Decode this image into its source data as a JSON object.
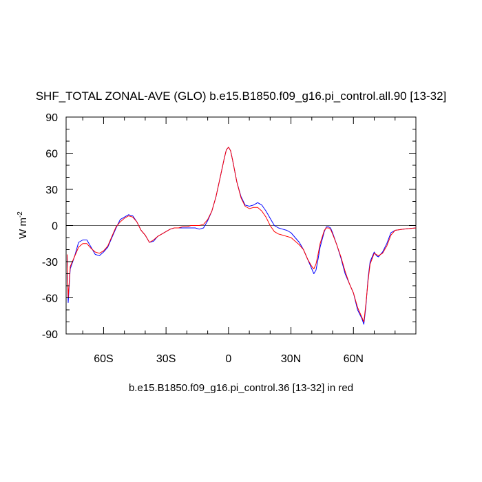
{
  "chart_data": {
    "type": "line",
    "title": "SHF_TOTAL ZONAL-AVE (GLO) b.e15.B1850.f09_g16.pi_control.all.90 [13-32]",
    "ylabel": "W m",
    "ylabel_superscript": "-2",
    "footer": "b.e15.B1850.f09_g16.pi_control.36 [13-32] in red",
    "xlim": [
      -78,
      90
    ],
    "ylim": [
      -90,
      90
    ],
    "x_ticks": [
      {
        "value": -60,
        "label": "60S"
      },
      {
        "value": -30,
        "label": "30S"
      },
      {
        "value": 0,
        "label": "0"
      },
      {
        "value": 30,
        "label": "30N"
      },
      {
        "value": 60,
        "label": "60N"
      }
    ],
    "y_ticks": [
      {
        "value": 90,
        "label": "90"
      },
      {
        "value": 60,
        "label": "60"
      },
      {
        "value": 30,
        "label": "30"
      },
      {
        "value": 0,
        "label": "0"
      },
      {
        "value": -30,
        "label": "-30"
      },
      {
        "value": -60,
        "label": "-60"
      },
      {
        "value": -90,
        "label": "-90"
      }
    ],
    "reference_line": 0,
    "series": [
      {
        "color": "#0000ff",
        "points": [
          [
            -77.5,
            -24
          ],
          [
            -77,
            -64
          ],
          [
            -76,
            -36
          ],
          [
            -74,
            -26
          ],
          [
            -72,
            -14
          ],
          [
            -70,
            -12
          ],
          [
            -68,
            -12
          ],
          [
            -66,
            -18
          ],
          [
            -64,
            -24
          ],
          [
            -62,
            -25
          ],
          [
            -60,
            -22
          ],
          [
            -58,
            -18
          ],
          [
            -56,
            -10
          ],
          [
            -54,
            -2
          ],
          [
            -52,
            5
          ],
          [
            -50,
            7
          ],
          [
            -48,
            9
          ],
          [
            -46,
            8
          ],
          [
            -44,
            3
          ],
          [
            -42,
            -4
          ],
          [
            -40,
            -8
          ],
          [
            -38,
            -14
          ],
          [
            -36,
            -13
          ],
          [
            -34,
            -9
          ],
          [
            -32,
            -7
          ],
          [
            -30,
            -5
          ],
          [
            -28,
            -3
          ],
          [
            -26,
            -2
          ],
          [
            -24,
            -2
          ],
          [
            -22,
            -2
          ],
          [
            -20,
            -2
          ],
          [
            -18,
            -2
          ],
          [
            -16,
            -2
          ],
          [
            -14,
            -3
          ],
          [
            -12,
            -2
          ],
          [
            -10,
            4
          ],
          [
            -8,
            12
          ],
          [
            -6,
            24
          ],
          [
            -4,
            40
          ],
          [
            -2,
            56
          ],
          [
            -1,
            63
          ],
          [
            0,
            65
          ],
          [
            1,
            62
          ],
          [
            2,
            54
          ],
          [
            4,
            36
          ],
          [
            6,
            24
          ],
          [
            8,
            17
          ],
          [
            10,
            16
          ],
          [
            12,
            17
          ],
          [
            14,
            19
          ],
          [
            16,
            17
          ],
          [
            18,
            12
          ],
          [
            20,
            6
          ],
          [
            22,
            0
          ],
          [
            24,
            -2
          ],
          [
            26,
            -3
          ],
          [
            28,
            -4
          ],
          [
            30,
            -6
          ],
          [
            32,
            -10
          ],
          [
            34,
            -14
          ],
          [
            36,
            -20
          ],
          [
            38,
            -28
          ],
          [
            40,
            -36
          ],
          [
            41,
            -40
          ],
          [
            42,
            -37
          ],
          [
            43,
            -28
          ],
          [
            44,
            -18
          ],
          [
            46,
            -5
          ],
          [
            47,
            -1
          ],
          [
            48,
            -1
          ],
          [
            49,
            -2
          ],
          [
            50,
            -6
          ],
          [
            52,
            -16
          ],
          [
            54,
            -27
          ],
          [
            56,
            -40
          ],
          [
            58,
            -48
          ],
          [
            60,
            -56
          ],
          [
            62,
            -70
          ],
          [
            64,
            -77
          ],
          [
            65,
            -82
          ],
          [
            66,
            -67
          ],
          [
            67,
            -44
          ],
          [
            68,
            -30
          ],
          [
            70,
            -22
          ],
          [
            71,
            -25
          ],
          [
            72,
            -26
          ],
          [
            74,
            -22
          ],
          [
            76,
            -15
          ],
          [
            78,
            -6
          ],
          [
            80,
            -4
          ],
          [
            84,
            -3
          ],
          [
            90,
            -2
          ]
        ]
      },
      {
        "color": "#ff0000",
        "points": [
          [
            -77.5,
            -24
          ],
          [
            -77,
            -60
          ],
          [
            -76,
            -34
          ],
          [
            -74,
            -26
          ],
          [
            -72,
            -18
          ],
          [
            -70,
            -15
          ],
          [
            -68,
            -15
          ],
          [
            -66,
            -19
          ],
          [
            -64,
            -22
          ],
          [
            -62,
            -23
          ],
          [
            -60,
            -21
          ],
          [
            -58,
            -17
          ],
          [
            -56,
            -9
          ],
          [
            -54,
            -1
          ],
          [
            -52,
            3
          ],
          [
            -50,
            6
          ],
          [
            -48,
            8
          ],
          [
            -46,
            7
          ],
          [
            -44,
            3
          ],
          [
            -42,
            -4
          ],
          [
            -40,
            -8
          ],
          [
            -38,
            -14
          ],
          [
            -36,
            -12
          ],
          [
            -34,
            -9
          ],
          [
            -32,
            -7
          ],
          [
            -30,
            -5
          ],
          [
            -28,
            -3
          ],
          [
            -26,
            -2
          ],
          [
            -24,
            -2
          ],
          [
            -22,
            -1
          ],
          [
            -20,
            -1
          ],
          [
            -18,
            0
          ],
          [
            -16,
            0
          ],
          [
            -14,
            0
          ],
          [
            -12,
            1
          ],
          [
            -10,
            5
          ],
          [
            -8,
            12
          ],
          [
            -6,
            24
          ],
          [
            -4,
            40
          ],
          [
            -2,
            56
          ],
          [
            -1,
            63
          ],
          [
            0,
            65
          ],
          [
            1,
            62
          ],
          [
            2,
            54
          ],
          [
            4,
            36
          ],
          [
            6,
            23
          ],
          [
            8,
            16
          ],
          [
            10,
            14
          ],
          [
            12,
            15
          ],
          [
            14,
            15
          ],
          [
            16,
            12
          ],
          [
            18,
            7
          ],
          [
            20,
            0
          ],
          [
            22,
            -5
          ],
          [
            24,
            -7
          ],
          [
            26,
            -8
          ],
          [
            28,
            -9
          ],
          [
            30,
            -10
          ],
          [
            32,
            -13
          ],
          [
            34,
            -16
          ],
          [
            36,
            -20
          ],
          [
            38,
            -28
          ],
          [
            40,
            -34
          ],
          [
            41,
            -36
          ],
          [
            42,
            -32
          ],
          [
            43,
            -24
          ],
          [
            44,
            -15
          ],
          [
            46,
            -4
          ],
          [
            47,
            -2
          ],
          [
            48,
            -2
          ],
          [
            49,
            -3
          ],
          [
            50,
            -7
          ],
          [
            52,
            -16
          ],
          [
            54,
            -26
          ],
          [
            56,
            -38
          ],
          [
            58,
            -48
          ],
          [
            60,
            -56
          ],
          [
            62,
            -68
          ],
          [
            64,
            -76
          ],
          [
            65,
            -80
          ],
          [
            66,
            -65
          ],
          [
            67,
            -46
          ],
          [
            68,
            -32
          ],
          [
            70,
            -23
          ],
          [
            71,
            -24
          ],
          [
            72,
            -25
          ],
          [
            74,
            -23
          ],
          [
            76,
            -17
          ],
          [
            78,
            -8
          ],
          [
            80,
            -4
          ],
          [
            84,
            -3
          ],
          [
            90,
            -2
          ]
        ]
      }
    ]
  }
}
